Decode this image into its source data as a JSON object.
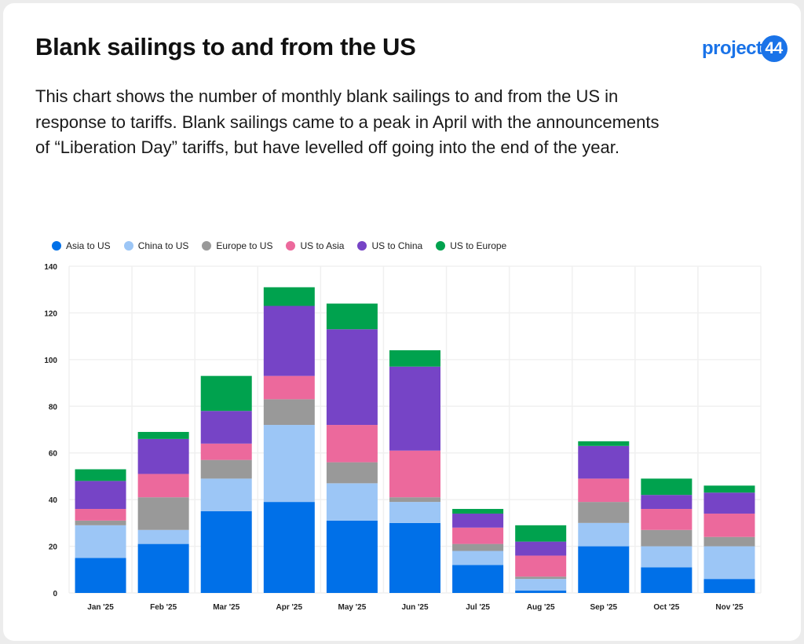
{
  "title": "Blank sailings to and from the US",
  "description": "This chart shows the number of monthly blank sailings to and from the US in response to tariffs. Blank sailings came to a peak in April with the announcements of “Liberation Day” tariffs, but have levelled off going into the end of the year.",
  "logo": {
    "text": "project",
    "badge": "44",
    "color": "#1a73e8"
  },
  "chart_data": {
    "type": "bar",
    "stacked": true,
    "categories": [
      "Jan '25",
      "Feb '25",
      "Mar '25",
      "Apr '25",
      "May '25",
      "Jun '25",
      "Jul '25",
      "Aug '25",
      "Sep '25",
      "Oct '25",
      "Nov '25"
    ],
    "series": [
      {
        "name": "Asia to US",
        "color": "#0070e8",
        "values": [
          15,
          21,
          35,
          39,
          31,
          30,
          12,
          1,
          20,
          11,
          6
        ]
      },
      {
        "name": "China to US",
        "color": "#9cc6f6",
        "values": [
          14,
          6,
          14,
          33,
          16,
          9,
          6,
          5,
          10,
          9,
          14
        ]
      },
      {
        "name": "Europe to US",
        "color": "#999999",
        "values": [
          2,
          14,
          8,
          11,
          9,
          2,
          3,
          1,
          9,
          7,
          4
        ]
      },
      {
        "name": "US to Asia",
        "color": "#ec699c",
        "values": [
          5,
          10,
          7,
          10,
          16,
          20,
          7,
          9,
          10,
          9,
          10
        ]
      },
      {
        "name": "US to China",
        "color": "#7644c6",
        "values": [
          12,
          15,
          14,
          30,
          41,
          36,
          6,
          6,
          14,
          6,
          9
        ]
      },
      {
        "name": "US to Europe",
        "color": "#00a24e",
        "values": [
          5,
          3,
          15,
          8,
          11,
          7,
          2,
          7,
          2,
          7,
          3
        ]
      }
    ],
    "ylim": [
      0,
      140
    ],
    "yticks": [
      0,
      20,
      40,
      60,
      80,
      100,
      120,
      140
    ],
    "grid": true,
    "legend": "top-left",
    "xlabel": "",
    "ylabel": ""
  }
}
